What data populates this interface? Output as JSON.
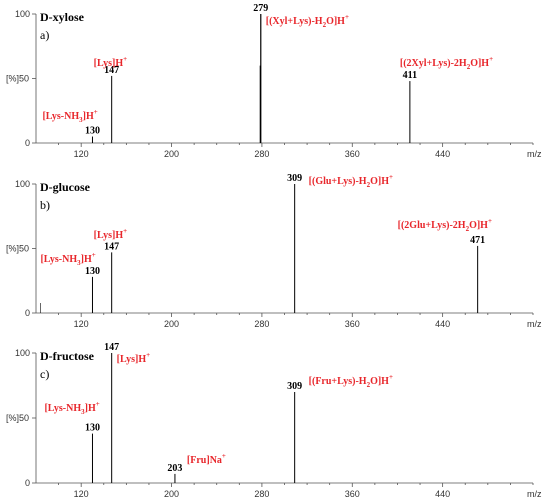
{
  "chart_data": [
    {
      "type": "bar",
      "title": "D-xylose",
      "panel": "a)",
      "ylabel": "[%]",
      "xlabel": "m/z",
      "ylim": [
        0,
        100
      ],
      "xlim": [
        80,
        520
      ],
      "xticks": [
        120,
        200,
        280,
        360,
        440
      ],
      "yticks": [
        0,
        50,
        100
      ],
      "peaks": [
        {
          "mz": 130,
          "intensity": 5,
          "label": "130"
        },
        {
          "mz": 147,
          "intensity": 52,
          "label": "147"
        },
        {
          "mz": 278.5,
          "intensity": 60,
          "label": ""
        },
        {
          "mz": 279,
          "intensity": 100,
          "label": "279"
        },
        {
          "mz": 411,
          "intensity": 48,
          "label": "411"
        }
      ],
      "ions": [
        {
          "text": "[Lys-NH3]H+",
          "anchor_mz": 130
        },
        {
          "text": "[Lys]H+",
          "anchor_mz": 147
        },
        {
          "text": "[(Xyl+Lys)-H2O]H+",
          "anchor_mz": 279
        },
        {
          "text": "[(2Xyl+Lys)-2H2O]H+",
          "anchor_mz": 411
        }
      ]
    },
    {
      "type": "bar",
      "title": "D-glucose",
      "panel": "b)",
      "ylabel": "[%]",
      "xlabel": "m/z",
      "ylim": [
        0,
        100
      ],
      "xlim": [
        80,
        520
      ],
      "xticks": [
        120,
        200,
        280,
        360,
        440
      ],
      "yticks": [
        0,
        50,
        100
      ],
      "peaks": [
        {
          "mz": 130,
          "intensity": 28,
          "label": "130"
        },
        {
          "mz": 147,
          "intensity": 47,
          "label": "147"
        },
        {
          "mz": 309,
          "intensity": 100,
          "label": "309"
        },
        {
          "mz": 471,
          "intensity": 52,
          "label": "471"
        }
      ],
      "ions": [
        {
          "text": "[Lys-NH3]H+",
          "anchor_mz": 130
        },
        {
          "text": "[Lys]H+",
          "anchor_mz": 147
        },
        {
          "text": "[(Glu+Lys)-H2O]H+",
          "anchor_mz": 309
        },
        {
          "text": "[(2Glu+Lys)-2H2O]H+",
          "anchor_mz": 471
        }
      ]
    },
    {
      "type": "bar",
      "title": "D-fructose",
      "panel": "c)",
      "ylabel": "[%]",
      "xlabel": "m/z",
      "ylim": [
        0,
        100
      ],
      "xlim": [
        80,
        520
      ],
      "xticks": [
        120,
        200,
        280,
        360,
        440
      ],
      "yticks": [
        0,
        50,
        100
      ],
      "peaks": [
        {
          "mz": 130,
          "intensity": 38,
          "label": "130"
        },
        {
          "mz": 147,
          "intensity": 100,
          "label": "147"
        },
        {
          "mz": 203,
          "intensity": 7,
          "label": "203"
        },
        {
          "mz": 309,
          "intensity": 70,
          "label": "309"
        }
      ],
      "ions": [
        {
          "text": "[Lys-NH3]H+",
          "anchor_mz": 130
        },
        {
          "text": "[Lys]H+",
          "anchor_mz": 147
        },
        {
          "text": "[Fru]Na+",
          "anchor_mz": 203
        },
        {
          "text": "[(Fru+Lys)-H2O]H+",
          "anchor_mz": 309
        }
      ]
    }
  ],
  "colors": {
    "ion_label": "#e8262b",
    "peak": "#000000",
    "axis": "#555555"
  }
}
